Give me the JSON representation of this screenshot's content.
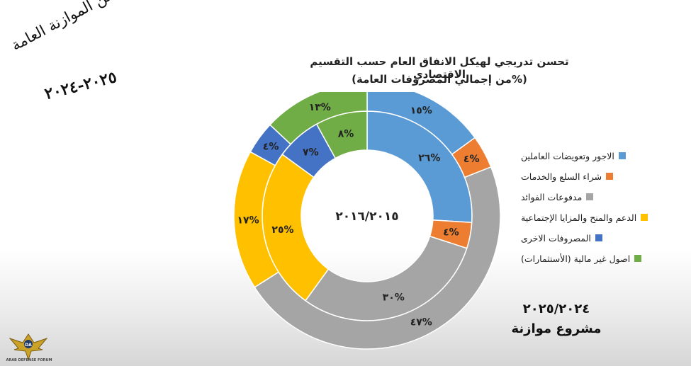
{
  "handwritten": {
    "line1": "لمحة من الموازنة العامة",
    "line2": "٢٠٢٥-٢٠٢٤"
  },
  "chart_data": {
    "type": "donut",
    "title": "تحسن تدريجي لهيكل الانفاق العام حسب التقسيم الاقتصادي",
    "subtitle": "(%من إجمالي المصروفات العامة)",
    "center_label": "٢٠١٦/٢٠١٥",
    "outer_ring_label": "٢٠٢٥/٢٠٢٤",
    "outer_ring_caption": "مشروع موازنة",
    "categories": [
      "الاجور وتعويضات العاملين",
      "شراء السلع والخدمات",
      "مدفوعات الفوائد",
      "الدعم والمنح والمزايا الإجتماعية",
      "المصروفات الاخرى",
      "اصول غير مالية (الأستثمارات)"
    ],
    "colors": [
      "#5b9bd5",
      "#ed7d31",
      "#a5a5a5",
      "#ffc000",
      "#4472c4",
      "#70ad47"
    ],
    "series": [
      {
        "name": "٢٠١٦/٢٠١٥",
        "ring": "inner",
        "values": [
          26,
          4,
          30,
          25,
          7,
          8
        ],
        "labels": [
          "٢٦%",
          "٤%",
          "٣٠%",
          "٢٥%",
          "٧%",
          "٨%"
        ]
      },
      {
        "name": "٢٠٢٥/٢٠٢٤",
        "ring": "outer",
        "values": [
          15,
          4,
          47,
          17,
          4,
          13
        ],
        "labels": [
          "١٥%",
          "٤%",
          "٤٧%",
          "١٧%",
          "٤%",
          "١٣%"
        ]
      }
    ],
    "legend_position": "right"
  },
  "logo": {
    "icon": "eagle-emblem-icon",
    "text": "ARAB DEFENSE FORUM"
  }
}
